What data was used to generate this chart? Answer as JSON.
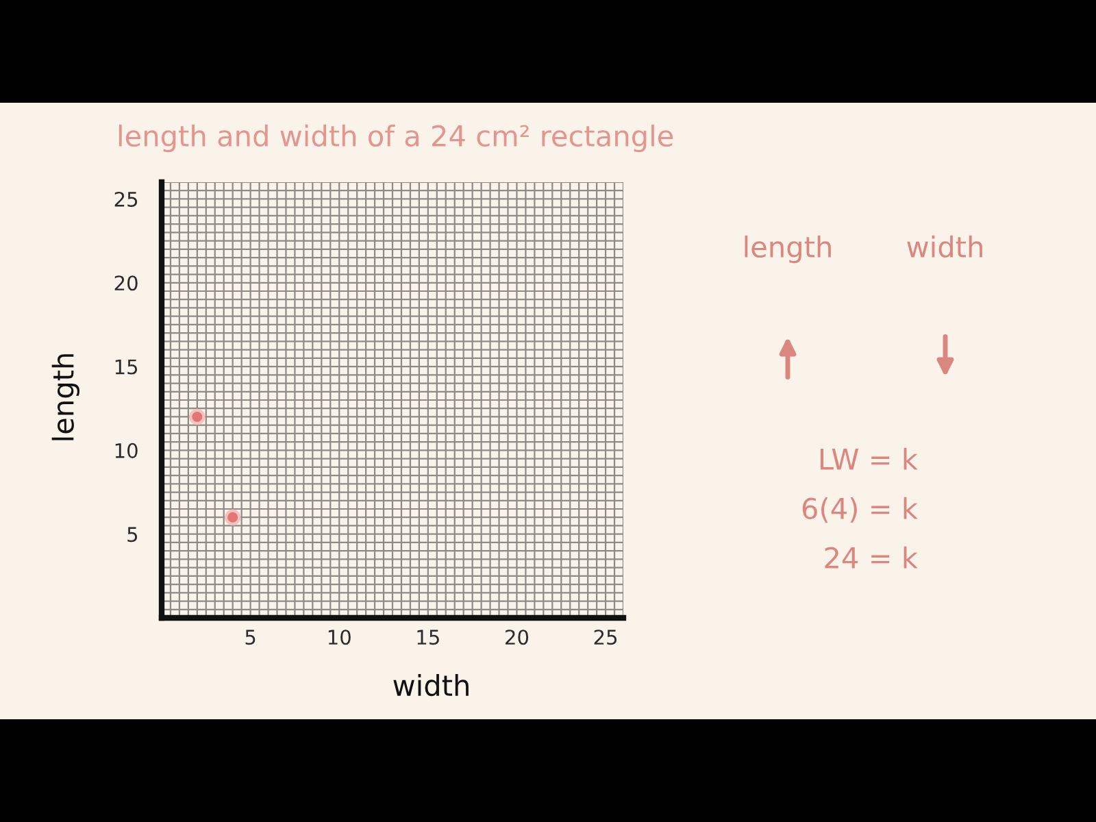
{
  "chart_data": {
    "type": "scatter",
    "title": "length and width of a 24 cm² rectangle",
    "xlabel": "width",
    "ylabel": "length",
    "x": [
      2,
      4
    ],
    "values": [
      12,
      6
    ],
    "color": "#e27771",
    "marker": "circle",
    "xlim": [
      0,
      26
    ],
    "ylim": [
      0,
      26
    ],
    "xticks": [
      {
        "value": 0.5,
        "label": null
      },
      {
        "value": 1,
        "label": null
      },
      {
        "value": 1.5,
        "label": null
      },
      {
        "value": 2,
        "label": null
      },
      {
        "value": 2.5,
        "label": null
      },
      {
        "value": 3,
        "label": null
      },
      {
        "value": 3.5,
        "label": null
      },
      {
        "value": 4,
        "label": null
      },
      {
        "value": 4.5,
        "label": null
      },
      5,
      {
        "value": 5.5,
        "label": null
      },
      {
        "value": 6,
        "label": null
      },
      {
        "value": 6.5,
        "label": null
      },
      {
        "value": 7,
        "label": null
      },
      {
        "value": 7.5,
        "label": null
      },
      {
        "value": 8,
        "label": null
      },
      {
        "value": 8.5,
        "label": null
      },
      {
        "value": 9,
        "label": null
      },
      {
        "value": 9.5,
        "label": null
      },
      10,
      {
        "value": 10.5,
        "label": null
      },
      {
        "value": 11,
        "label": null
      },
      {
        "value": 11.5,
        "label": null
      },
      {
        "value": 12,
        "label": null
      },
      {
        "value": 12.5,
        "label": null
      },
      {
        "value": 13,
        "label": null
      },
      {
        "value": 13.5,
        "label": null
      },
      {
        "value": 14,
        "label": null
      },
      {
        "value": 14.5,
        "label": null
      },
      15,
      {
        "value": 15.5,
        "label": null
      },
      {
        "value": 16,
        "label": null
      },
      {
        "value": 16.5,
        "label": null
      },
      {
        "value": 17,
        "label": null
      },
      {
        "value": 17.5,
        "label": null
      },
      {
        "value": 18,
        "label": null
      },
      {
        "value": 18.5,
        "label": null
      },
      {
        "value": 19,
        "label": null
      },
      {
        "value": 19.5,
        "label": null
      },
      20,
      {
        "value": 20.5,
        "label": null
      },
      {
        "value": 21,
        "label": null
      },
      {
        "value": 21.5,
        "label": null
      },
      {
        "value": 22,
        "label": null
      },
      {
        "value": 22.5,
        "label": null
      },
      {
        "value": 23,
        "label": null
      },
      {
        "value": 23.5,
        "label": null
      },
      {
        "value": 24,
        "label": null
      },
      {
        "value": 24.5,
        "label": null
      },
      25,
      {
        "value": 25.5,
        "label": null
      },
      {
        "value": 26,
        "label": null
      }
    ],
    "yticks": [
      {
        "value": 0.5,
        "label": null
      },
      {
        "value": 1,
        "label": null
      },
      {
        "value": 1.5,
        "label": null
      },
      {
        "value": 2,
        "label": null
      },
      {
        "value": 2.5,
        "label": null
      },
      {
        "value": 3,
        "label": null
      },
      {
        "value": 3.5,
        "label": null
      },
      {
        "value": 4,
        "label": null
      },
      {
        "value": 4.5,
        "label": null
      },
      5,
      {
        "value": 5.5,
        "label": null
      },
      {
        "value": 6,
        "label": null
      },
      {
        "value": 6.5,
        "label": null
      },
      {
        "value": 7,
        "label": null
      },
      {
        "value": 7.5,
        "label": null
      },
      {
        "value": 8,
        "label": null
      },
      {
        "value": 8.5,
        "label": null
      },
      {
        "value": 9,
        "label": null
      },
      {
        "value": 9.5,
        "label": null
      },
      10,
      {
        "value": 10.5,
        "label": null
      },
      {
        "value": 11,
        "label": null
      },
      {
        "value": 11.5,
        "label": null
      },
      {
        "value": 12,
        "label": null
      },
      {
        "value": 12.5,
        "label": null
      },
      {
        "value": 13,
        "label": null
      },
      {
        "value": 13.5,
        "label": null
      },
      {
        "value": 14,
        "label": null
      },
      {
        "value": 14.5,
        "label": null
      },
      15,
      {
        "value": 15.5,
        "label": null
      },
      {
        "value": 16,
        "label": null
      },
      {
        "value": 16.5,
        "label": null
      },
      {
        "value": 17,
        "label": null
      },
      {
        "value": 17.5,
        "label": null
      },
      {
        "value": 18,
        "label": null
      },
      {
        "value": 18.5,
        "label": null
      },
      {
        "value": 19,
        "label": null
      },
      {
        "value": 19.5,
        "label": null
      },
      20,
      {
        "value": 20.5,
        "label": null
      },
      {
        "value": 21,
        "label": null
      },
      {
        "value": 21.5,
        "label": null
      },
      {
        "value": 22,
        "label": null
      },
      {
        "value": 22.5,
        "label": null
      },
      {
        "value": 23,
        "label": null
      },
      {
        "value": 23.5,
        "label": null
      },
      {
        "value": 24,
        "label": null
      },
      {
        "value": 24.5,
        "label": null
      },
      25,
      {
        "value": 25.5,
        "label": null
      },
      {
        "value": 26,
        "label": null
      }
    ],
    "grid": true,
    "annotations": [
      "length",
      "width",
      "LW = k",
      "6(4) = k",
      "24 = k"
    ]
  }
}
